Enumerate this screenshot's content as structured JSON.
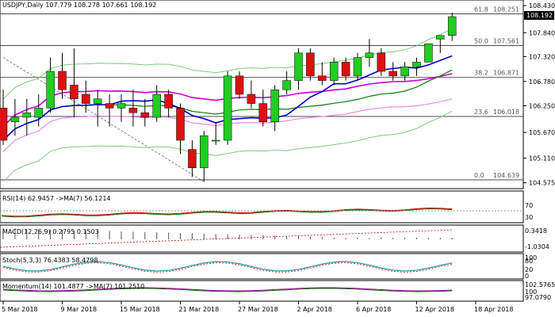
{
  "chart_data": {
    "type": "candlestick",
    "symbol_header": "USDJPY,Daily  107.779 108.278 107.661 108.192",
    "last_price": "108.192",
    "price_axis": {
      "ylim": [
        104.5,
        108.5
      ],
      "ticks": [
        "108.430",
        "108.192",
        "107.840",
        "107.320",
        "106.780",
        "106.250",
        "105.670",
        "105.110",
        "104.575"
      ],
      "tick_values": [
        108.43,
        108.192,
        107.84,
        107.32,
        106.78,
        106.25,
        105.67,
        105.11,
        104.575
      ]
    },
    "x_axis": {
      "ticks": [
        {
          "i": 0,
          "label": "5 Mar 2018"
        },
        {
          "i": 5,
          "label": "9 Mar 2018"
        },
        {
          "i": 10,
          "label": "15 Mar 2018"
        },
        {
          "i": 15,
          "label": "21 Mar 2018"
        },
        {
          "i": 20,
          "label": "27 Mar 2018"
        },
        {
          "i": 25,
          "label": "2 Apr 2018"
        },
        {
          "i": 30,
          "label": "6 Apr 2018"
        },
        {
          "i": 35,
          "label": "12 Apr 2018"
        },
        {
          "i": 40,
          "label": "18 Apr 2018"
        }
      ]
    },
    "fibonacci": [
      {
        "level": "61.8",
        "price": 108.251,
        "label": "108.251"
      },
      {
        "level": "50.0",
        "price": 107.561,
        "label": "107.561"
      },
      {
        "level": "38.2",
        "price": 106.871,
        "label": "106.871"
      },
      {
        "level": "23.6",
        "price": 106.018,
        "label": "106.018"
      },
      {
        "level": "0.0",
        "price": 104.639,
        "label": "104.639"
      }
    ],
    "candles": [
      [
        106.2,
        106.6,
        105.4,
        105.5
      ],
      [
        105.9,
        106.4,
        105.6,
        106.0
      ],
      [
        106.0,
        106.4,
        105.6,
        106.1
      ],
      [
        106.0,
        106.5,
        105.8,
        106.2
      ],
      [
        106.2,
        107.3,
        106.1,
        107.0
      ],
      [
        107.0,
        107.4,
        106.4,
        106.6
      ],
      [
        106.7,
        107.5,
        106.0,
        106.4
      ],
      [
        106.5,
        106.8,
        106.1,
        106.3
      ],
      [
        106.3,
        106.6,
        105.8,
        106.4
      ],
      [
        106.3,
        106.5,
        105.8,
        106.2
      ],
      [
        106.2,
        106.5,
        105.9,
        106.3
      ],
      [
        106.2,
        106.6,
        105.8,
        106.1
      ],
      [
        106.1,
        106.4,
        105.8,
        106.0
      ],
      [
        106.0,
        106.7,
        105.9,
        106.5
      ],
      [
        106.5,
        106.6,
        106.0,
        106.2
      ],
      [
        106.2,
        106.3,
        105.2,
        105.5
      ],
      [
        105.3,
        105.5,
        104.7,
        104.9
      ],
      [
        104.9,
        105.7,
        104.6,
        105.6
      ],
      [
        105.5,
        105.9,
        105.4,
        105.5
      ],
      [
        105.5,
        107.0,
        105.4,
        106.9
      ],
      [
        106.9,
        107.0,
        106.4,
        106.5
      ],
      [
        106.5,
        106.8,
        106.2,
        106.3
      ],
      [
        106.3,
        106.6,
        105.8,
        105.9
      ],
      [
        105.9,
        106.7,
        105.7,
        106.6
      ],
      [
        106.6,
        107.0,
        106.5,
        106.8
      ],
      [
        106.8,
        107.5,
        106.6,
        107.4
      ],
      [
        107.4,
        107.5,
        106.8,
        106.9
      ],
      [
        106.9,
        107.2,
        106.7,
        106.8
      ],
      [
        106.8,
        107.3,
        106.7,
        107.2
      ],
      [
        107.2,
        107.3,
        106.8,
        106.9
      ],
      [
        106.9,
        107.4,
        106.8,
        107.3
      ],
      [
        107.3,
        107.7,
        107.1,
        107.4
      ],
      [
        107.4,
        107.5,
        106.9,
        107.0
      ],
      [
        107.0,
        107.2,
        106.8,
        106.9
      ],
      [
        106.9,
        107.2,
        106.8,
        107.1
      ],
      [
        107.1,
        107.3,
        106.9,
        107.2
      ],
      [
        107.2,
        107.6,
        107.2,
        107.6
      ],
      [
        107.7,
        107.78,
        107.4,
        107.78
      ],
      [
        107.78,
        108.28,
        107.66,
        108.19
      ]
    ],
    "ma_blue_label": "",
    "rsi": {
      "label": "RSI(14) 62.9457 ->MA(7) 56.1214",
      "levels": [
        "70",
        "30"
      ]
    },
    "macd": {
      "label": "MACD(12,26,9) 0.2795 0.1503",
      "axis": [
        "0.3418",
        "-1.0304"
      ]
    },
    "stoch": {
      "label": "Stoch(5,3,3) 76.4383 58.4798",
      "axis": [
        "100",
        "80",
        "20",
        "0"
      ]
    },
    "momentum": {
      "label": "Momentum(14) 101.4877 ->MA(7) 101.2510",
      "axis": [
        "102.5765",
        "100",
        "97.0790"
      ]
    }
  }
}
